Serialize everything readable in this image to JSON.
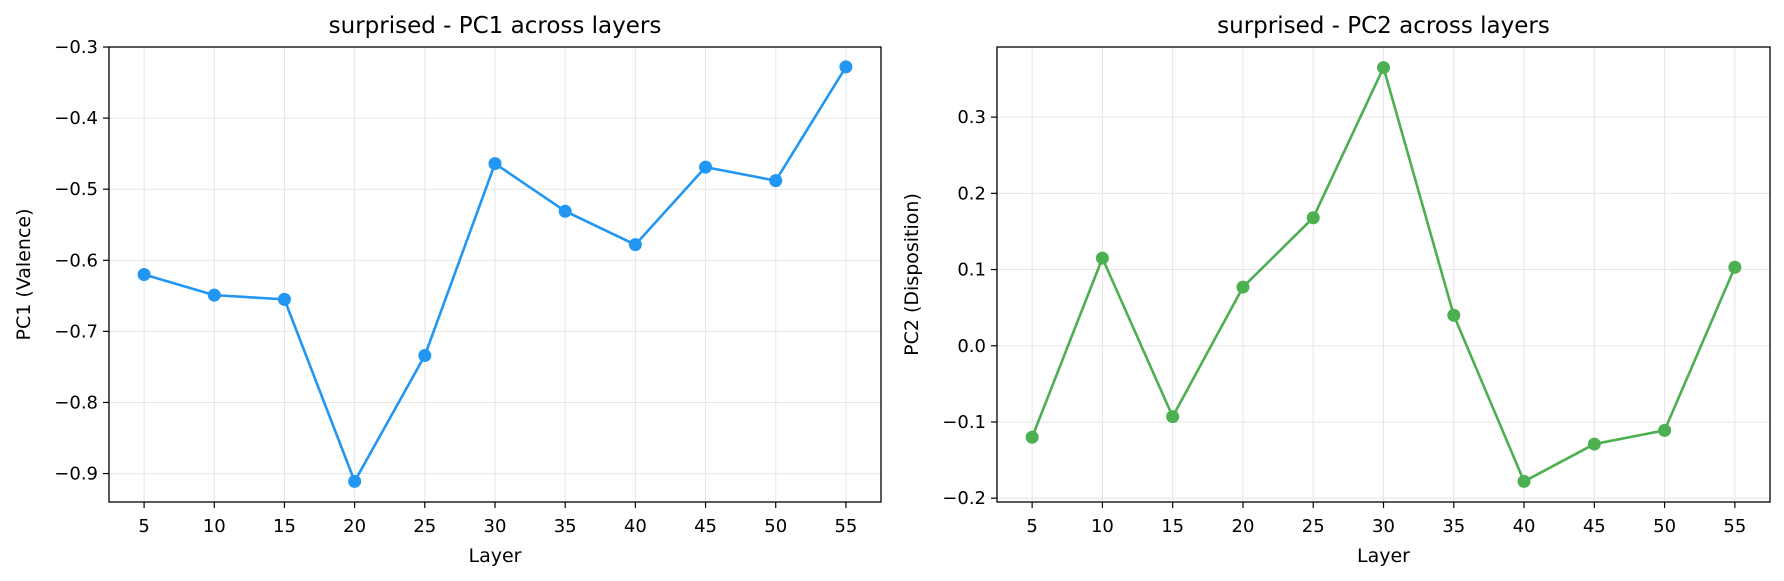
{
  "chart_data": [
    {
      "type": "line",
      "title": "surprised - PC1 across layers",
      "xlabel": "Layer",
      "ylabel": "PC1 (Valence)",
      "x": [
        5,
        10,
        15,
        20,
        25,
        30,
        35,
        40,
        45,
        50,
        55
      ],
      "y": [
        -0.62,
        -0.649,
        -0.655,
        -0.911,
        -0.734,
        -0.464,
        -0.531,
        -0.578,
        -0.469,
        -0.488,
        -0.328
      ],
      "xticks": [
        "5",
        "10",
        "15",
        "20",
        "25",
        "30",
        "35",
        "40",
        "45",
        "50",
        "55"
      ],
      "yticks": [
        -0.3,
        -0.4,
        -0.5,
        -0.6,
        -0.7,
        -0.8,
        -0.9
      ],
      "ytick_labels": [
        "−0.3",
        "−0.4",
        "−0.5",
        "−0.6",
        "−0.7",
        "−0.8",
        "−0.9"
      ],
      "xlim": [
        2.5,
        57.5
      ],
      "ylim": [
        -0.94,
        -0.3
      ],
      "grid": true,
      "color": "#2196F3",
      "marker": "circle"
    },
    {
      "type": "line",
      "title": "surprised - PC2 across layers",
      "xlabel": "Layer",
      "ylabel": "PC2 (Disposition)",
      "x": [
        5,
        10,
        15,
        20,
        25,
        30,
        35,
        40,
        45,
        50,
        55
      ],
      "y": [
        -0.12,
        0.115,
        -0.093,
        0.077,
        0.168,
        0.365,
        0.04,
        -0.178,
        -0.129,
        -0.111,
        0.103
      ],
      "xticks": [
        "5",
        "10",
        "15",
        "20",
        "25",
        "30",
        "35",
        "40",
        "45",
        "50",
        "55"
      ],
      "yticks": [
        0.3,
        0.2,
        0.1,
        0.0,
        -0.1,
        -0.2
      ],
      "ytick_labels": [
        "0.3",
        "0.2",
        "0.1",
        "0.0",
        "−0.1",
        "−0.2"
      ],
      "xlim": [
        2.5,
        57.5
      ],
      "ylim": [
        -0.205,
        0.392
      ],
      "grid": true,
      "color": "#4CAF50",
      "marker": "circle"
    }
  ]
}
